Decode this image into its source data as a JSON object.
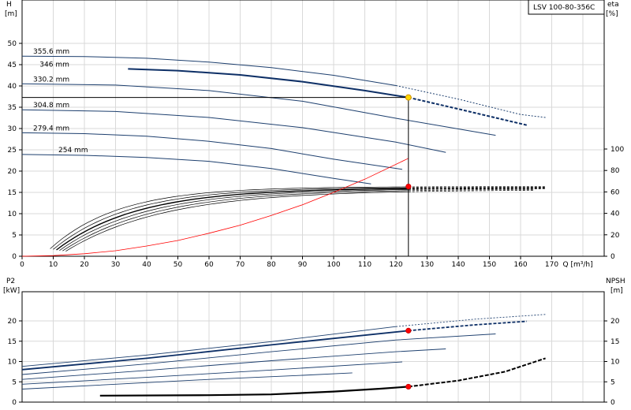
{
  "chart_data": [
    {
      "type": "line",
      "id": "head-efficiency",
      "title": "LSV 100-80-356C",
      "ylabel": "H",
      "yunit": "[m]",
      "y2label": "eta",
      "y2unit": "[%]",
      "xlabel": "Q",
      "xunit": "[m³/h]",
      "xlim": [
        0,
        180
      ],
      "ylim": [
        0,
        55
      ],
      "y2lim": [
        0,
        100
      ],
      "xticks": [
        0,
        10,
        20,
        30,
        40,
        50,
        60,
        70,
        80,
        90,
        100,
        110,
        120,
        130,
        140,
        150,
        160,
        170
      ],
      "yticks": [
        0,
        5,
        10,
        15,
        20,
        25,
        30,
        35,
        40,
        45,
        50
      ],
      "y2ticks": [
        0,
        20,
        40,
        60,
        80,
        100
      ],
      "grid": true,
      "duty_point": {
        "q": 124,
        "h": 37.3,
        "eta": 65
      },
      "head_curves": [
        {
          "name": "355.6 mm",
          "color": "#1d3f6e",
          "highlight": false,
          "solid": [
            [
              0,
              47.0
            ],
            [
              20,
              46.9
            ],
            [
              40,
              46.5
            ],
            [
              60,
              45.6
            ],
            [
              80,
              44.3
            ],
            [
              100,
              42.5
            ],
            [
              120,
              40.1
            ]
          ],
          "dashed": [
            [
              120,
              40.1
            ],
            [
              140,
              36.9
            ],
            [
              160,
              33.3
            ],
            [
              168,
              32.6
            ]
          ]
        },
        {
          "name": "346 mm",
          "color": "#0d2f66",
          "highlight": true,
          "solid": [
            [
              34,
              44.0
            ],
            [
              50,
              43.6
            ],
            [
              70,
              42.6
            ],
            [
              90,
              41.0
            ],
            [
              110,
              38.9
            ],
            [
              124,
              37.3
            ]
          ],
          "dashed": [
            [
              124,
              37.3
            ],
            [
              140,
              34.6
            ],
            [
              155,
              32.0
            ],
            [
              162,
              30.8
            ]
          ]
        },
        {
          "name": "330.2 mm",
          "color": "#1d3f6e",
          "highlight": false,
          "solid": [
            [
              0,
              40.5
            ],
            [
              30,
              40.2
            ],
            [
              60,
              38.9
            ],
            [
              90,
              36.4
            ],
            [
              120,
              32.4
            ],
            [
              152,
              28.4
            ]
          ],
          "dashed": []
        },
        {
          "name": "304.8 mm",
          "color": "#1d3f6e",
          "highlight": false,
          "solid": [
            [
              0,
              34.4
            ],
            [
              30,
              34.0
            ],
            [
              60,
              32.6
            ],
            [
              90,
              30.2
            ],
            [
              120,
              26.8
            ],
            [
              136,
              24.4
            ]
          ],
          "dashed": []
        },
        {
          "name": "279.4 mm",
          "color": "#1d3f6e",
          "highlight": false,
          "solid": [
            [
              0,
              29.0
            ],
            [
              20,
              28.8
            ],
            [
              40,
              28.2
            ],
            [
              60,
              27.0
            ],
            [
              80,
              25.3
            ],
            [
              100,
              22.8
            ],
            [
              122,
              20.4
            ]
          ],
          "dashed": []
        },
        {
          "name": "254 mm",
          "color": "#1d3f6e",
          "highlight": false,
          "solid": [
            [
              0,
              23.9
            ],
            [
              20,
              23.7
            ],
            [
              40,
              23.2
            ],
            [
              60,
              22.3
            ],
            [
              80,
              20.6
            ],
            [
              100,
              18.3
            ],
            [
              112,
              17.0
            ]
          ],
          "dashed": []
        }
      ],
      "system_curve": {
        "color": "#ff0000",
        "points": [
          [
            0,
            0
          ],
          [
            10,
            0.15
          ],
          [
            20,
            0.6
          ],
          [
            30,
            1.3
          ],
          [
            40,
            2.4
          ],
          [
            50,
            3.7
          ],
          [
            60,
            5.4
          ],
          [
            70,
            7.3
          ],
          [
            80,
            9.6
          ],
          [
            90,
            12.1
          ],
          [
            100,
            15.0
          ],
          [
            110,
            18.1
          ],
          [
            124,
            23.0
          ],
          [
            124,
            37.3
          ]
        ]
      },
      "efficiency_curves": {
        "color": "#000000",
        "duty_eta": 65,
        "q_start": [
          9,
          10,
          11,
          12,
          13,
          14
        ],
        "dashed_end": [
          170,
          170,
          170,
          168,
          166,
          164
        ]
      }
    },
    {
      "type": "line",
      "id": "power-npsh",
      "ylabel": "P2",
      "yunit": "[kW]",
      "y2label": "NPSH",
      "y2unit": "[m]",
      "xlim": [
        0,
        180
      ],
      "ylim": [
        0,
        25
      ],
      "yticks": [
        0,
        5,
        10,
        15,
        20
      ],
      "y2ticks": [
        0,
        5,
        10,
        15,
        20
      ],
      "grid": true,
      "duty_point": {
        "q": 124,
        "p2": 17.6,
        "npsh": 3.8
      },
      "power_curves": [
        {
          "name": "355.6 mm",
          "highlight": false,
          "solid": [
            [
              0,
              8.8
            ],
            [
              40,
              11.6
            ],
            [
              80,
              14.9
            ],
            [
              120,
              18.6
            ]
          ],
          "dashed": [
            [
              120,
              18.6
            ],
            [
              145,
              20.4
            ],
            [
              168,
              21.6
            ]
          ]
        },
        {
          "name": "346 mm",
          "highlight": true,
          "solid": [
            [
              0,
              8.0
            ],
            [
              40,
              10.8
            ],
            [
              80,
              14.1
            ],
            [
              124,
              17.6
            ]
          ],
          "dashed": [
            [
              124,
              17.6
            ],
            [
              145,
              19.0
            ],
            [
              162,
              19.9
            ]
          ]
        },
        {
          "name": "330.2 mm",
          "highlight": false,
          "solid": [
            [
              0,
              6.8
            ],
            [
              40,
              9.4
            ],
            [
              80,
              12.4
            ],
            [
              120,
              15.3
            ],
            [
              152,
              16.8
            ]
          ],
          "dashed": []
        },
        {
          "name": "304.8 mm",
          "highlight": false,
          "solid": [
            [
              0,
              5.6
            ],
            [
              40,
              7.8
            ],
            [
              80,
              10.2
            ],
            [
              120,
              12.4
            ],
            [
              136,
              13.1
            ]
          ],
          "dashed": []
        },
        {
          "name": "279.4 mm",
          "highlight": false,
          "solid": [
            [
              0,
              4.4
            ],
            [
              40,
              6.1
            ],
            [
              80,
              7.9
            ],
            [
              122,
              9.9
            ]
          ],
          "dashed": []
        },
        {
          "name": "254 mm",
          "highlight": false,
          "solid": [
            [
              0,
              3.2
            ],
            [
              30,
              4.4
            ],
            [
              60,
              5.6
            ],
            [
              90,
              6.6
            ],
            [
              106,
              7.2
            ]
          ],
          "dashed": []
        }
      ],
      "npsh_curve": {
        "solid": [
          [
            25,
            1.6
          ],
          [
            60,
            1.7
          ],
          [
            80,
            1.9
          ],
          [
            100,
            2.6
          ],
          [
            115,
            3.3
          ],
          [
            124,
            3.8
          ]
        ],
        "dashed": [
          [
            124,
            3.8
          ],
          [
            140,
            5.3
          ],
          [
            155,
            7.5
          ],
          [
            168,
            10.8
          ]
        ]
      }
    }
  ]
}
